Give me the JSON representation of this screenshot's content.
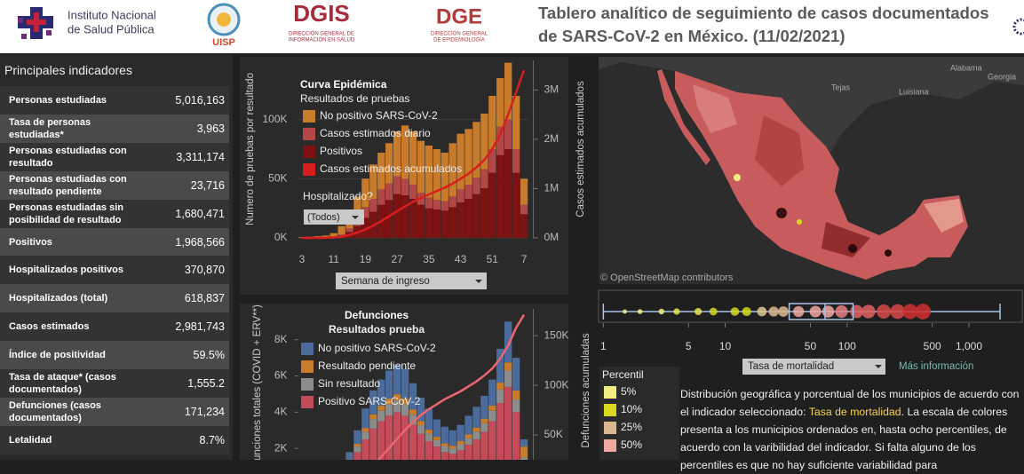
{
  "header": {
    "insp": [
      "Instituto Nacional",
      "de Salud Pública"
    ],
    "uisp": "UISP",
    "dgis": "DGIS",
    "dgis_sub": [
      "DIRECCIÓN GENERAL DE",
      "INFORMACIÓN EN SALUD"
    ],
    "dge": "DGE",
    "dge_sub": [
      "DIRECCIÓN GENERAL",
      "DE EPIDEMIOLOGÍA"
    ],
    "title": [
      "Tablero analítico de seguimiento de casos documentados",
      "de SARS-CoV-2 en México. (11/02/2021)"
    ]
  },
  "indicators": {
    "title": "Principales indicadores",
    "rows": [
      [
        "Personas estudiadas",
        "5,016,163"
      ],
      [
        "Tasa de personas estudiadas*",
        "3,963"
      ],
      [
        "Personas estudiadas con resultado",
        "3,311,174"
      ],
      [
        "Personas estudiadas con resultado pendiente",
        "23,716"
      ],
      [
        "Personas estudiadas sin posibilidad de resultado",
        "1,680,471"
      ],
      [
        "Positivos",
        "1,968,566"
      ],
      [
        "Hospitalizados positivos",
        "370,870"
      ],
      [
        "Hospitalizados (total)",
        "618,837"
      ],
      [
        "Casos estimados",
        "2,981,743"
      ],
      [
        "Índice de positividad",
        "59.5%"
      ],
      [
        "Tasa de ataque* (casos documentados)",
        "1,555.2"
      ],
      [
        "Defunciones (casos documentados)",
        "171,234"
      ],
      [
        "Letalidad",
        "8.7%"
      ]
    ]
  },
  "epi_chart": {
    "type": "bar",
    "title": "Curva Epidémica",
    "subtitle": "Resultados de pruebas",
    "y_label": "Numero de pruebas por resultado",
    "y2_label": "Casos estimados acumulados",
    "filter_label": "Hospitalizado?",
    "filter_value": "(Todos)",
    "x_selector": "Semana de ingreso",
    "categories": [
      "3",
      null,
      null,
      null,
      "11",
      null,
      null,
      null,
      "19",
      null,
      null,
      null,
      "27",
      null,
      null,
      null,
      "35",
      null,
      null,
      null,
      "43",
      null,
      null,
      null,
      "51",
      null,
      null,
      null,
      "7"
    ],
    "series": [
      {
        "name": "No positivo SARS-CoV-2",
        "color": "#c97b2c",
        "values": [
          500,
          1000,
          1500,
          1850,
          3200,
          7000,
          12000,
          19000,
          24000,
          29000,
          31000,
          34000,
          38000,
          45000,
          45000,
          44000,
          44000,
          43000,
          41000,
          45000,
          47000,
          47000,
          47000,
          47000,
          45000,
          41000,
          48000,
          45000,
          22000
        ]
      },
      {
        "name": "Casos estimados diario",
        "color": "#b24747",
        "values": [
          0,
          0,
          0,
          50,
          300,
          1000,
          3000,
          6000,
          9000,
          11000,
          13000,
          14000,
          15000,
          14000,
          12000,
          10000,
          9000,
          8000,
          8000,
          9000,
          11000,
          12000,
          14000,
          16000,
          20000,
          24000,
          25000,
          20000,
          8000
        ]
      },
      {
        "name": "Positivos",
        "color": "#7d1212",
        "values": [
          0,
          0,
          0,
          100,
          500,
          2000,
          5000,
          10000,
          17000,
          22000,
          28000,
          32000,
          37000,
          36000,
          33000,
          28000,
          25000,
          24000,
          23000,
          26000,
          30000,
          33000,
          37000,
          42000,
          55000,
          70000,
          75000,
          55000,
          20000
        ]
      },
      {
        "name": "Casos estimados acumulados",
        "color": "#d81e1e",
        "type": "line",
        "axis": "y2",
        "values": [
          0,
          0,
          1000,
          3000,
          8000,
          25000,
          60000,
          110000,
          170000,
          250000,
          340000,
          440000,
          540000,
          640000,
          730000,
          810000,
          880000,
          950000,
          1020000,
          1100000,
          1200000,
          1300000,
          1430000,
          1580000,
          1800000,
          2100000,
          2500000,
          2950000,
          3400000
        ]
      }
    ],
    "ylim": [
      0,
      150000
    ],
    "yticks": [
      {
        "value": 0,
        "label": "0K"
      },
      {
        "value": 50000,
        "label": "50K"
      },
      {
        "value": 100000,
        "label": "100K"
      }
    ],
    "y2lim": [
      0,
      3600000
    ],
    "y2ticks": [
      {
        "value": 0,
        "label": "0M"
      },
      {
        "value": 1000000,
        "label": "1M"
      },
      {
        "value": 2000000,
        "label": "2M"
      },
      {
        "value": 3000000,
        "label": "3M"
      }
    ],
    "grid": true
  },
  "deaths_chart": {
    "type": "bar",
    "title": "Defunciones",
    "subtitle": "Resultados prueba",
    "y_label": "Defunciones totales (COVID + ERV**)",
    "y2_label": "Defunciones acumuladas",
    "series": [
      {
        "name": "No positivo SARS-CoV-2",
        "color": "#4b6b9b",
        "values": [
          0,
          0,
          3,
          10,
          40,
          180,
          410,
          750,
          1070,
          1320,
          1430,
          1550,
          1610,
          1640,
          1460,
          1280,
          1170,
          960,
          920,
          850,
          900,
          1030,
          1150,
          1260,
          1430,
          1870,
          2250,
          1800,
          400
        ]
      },
      {
        "name": "Resultado pendiente",
        "color": "#c97b2c",
        "values": [
          0,
          0,
          0,
          5,
          10,
          40,
          90,
          150,
          210,
          260,
          290,
          320,
          330,
          320,
          280,
          240,
          210,
          180,
          160,
          150,
          170,
          190,
          220,
          250,
          290,
          380,
          450,
          500,
          600
        ]
      },
      {
        "name": "Sin resultado",
        "color": "#8c8c8c",
        "values": [
          0,
          0,
          2,
          5,
          20,
          80,
          200,
          300,
          420,
          520,
          580,
          630,
          660,
          640,
          560,
          480,
          420,
          360,
          320,
          300,
          330,
          380,
          430,
          490,
          580,
          750,
          900,
          700,
          300
        ]
      },
      {
        "name": "Positivo SARS-CoV-2",
        "color": "#c44b5a",
        "values": [
          0,
          0,
          5,
          30,
          130,
          500,
          1100,
          1800,
          2500,
          3100,
          3500,
          3800,
          4000,
          3800,
          3300,
          2800,
          2400,
          2100,
          1800,
          1700,
          1900,
          2200,
          2500,
          2900,
          3500,
          4500,
          5400,
          4000,
          1200
        ]
      },
      {
        "name": "Defunciones acumuladas",
        "color": "#ee6670",
        "type": "line",
        "axis": "y2",
        "values": [
          0,
          0,
          0,
          0,
          100,
          800,
          3000,
          7000,
          13000,
          20000,
          28000,
          37000,
          46000,
          55000,
          63000,
          70000,
          76000,
          81000,
          86000,
          90000,
          94000,
          99000,
          104000,
          110000,
          117000,
          127000,
          140000,
          158000,
          171000
        ]
      }
    ],
    "ylim": [
      0,
      9700
    ],
    "yticks": [
      {
        "value": 2000,
        "label": "2K"
      },
      {
        "value": 4000,
        "label": "4K"
      },
      {
        "value": 6000,
        "label": "6K"
      },
      {
        "value": 8000,
        "label": "8K"
      }
    ],
    "y2lim": [
      0,
      177000
    ],
    "y2ticks": [
      {
        "value": 50000,
        "label": "50K"
      },
      {
        "value": 100000,
        "label": "100K"
      },
      {
        "value": 150000,
        "label": "150K"
      }
    ],
    "grid": false
  },
  "map": {
    "labels": [
      "Tejas",
      "Luisiana",
      "Alabama",
      "Georgia"
    ],
    "attribution": "© OpenStreetMap contributors"
  },
  "box_plot": {
    "type": "box",
    "log_scale": true,
    "xlim": [
      0.93,
      2200
    ],
    "xticks": [
      1,
      5,
      10,
      50,
      100,
      500,
      {
        "value": 1000,
        "label": "1,000"
      }
    ],
    "whisker_low": 1,
    "q1": 33.5,
    "median": 66,
    "q3": 112,
    "whisker_high": 1800,
    "box_color": "#a8c4e6",
    "points": [
      1.5,
      2,
      3,
      4,
      6,
      8,
      12,
      15,
      20,
      25,
      30,
      40,
      55,
      70,
      90,
      120,
      150,
      200,
      260,
      330,
      420
    ],
    "point_colors": [
      "#f0ee80",
      "#f0ee80",
      "#f0ee80",
      "#e6e650",
      "#e6e650",
      "#d8d820",
      "#d8d820",
      "#d8d820",
      "#dcc890",
      "#dcb890",
      "#dcb890",
      "#f0a8a0",
      "#f0a8a0",
      "#f0a8a0",
      "#e88080",
      "#e06060",
      "#e06060",
      "#d84848",
      "#d84848",
      "#d03030",
      "#d03030"
    ],
    "selector": "Tasa de mortalidad",
    "link": "Más información"
  },
  "percentile_legend": {
    "title": "Percentil",
    "items": [
      {
        "label": "5%",
        "color": "#f0ee80"
      },
      {
        "label": "10%",
        "color": "#d8d820"
      },
      {
        "label": "25%",
        "color": "#dcb890"
      },
      {
        "label": "50%",
        "color": "#f0a8a0"
      }
    ]
  },
  "description": [
    "Distribución geográfica y porcentual de los municipios de acuerdo con el indicador seleccionado: ",
    "Tasa de mortalidad",
    ". La escala de colores presenta a los municipios ordenados en, hasta ocho percentiles, de acuerdo con la varibilidad del indicador. Si falta alguno de los percentiles es que no hay suficiente variabilidad para"
  ]
}
